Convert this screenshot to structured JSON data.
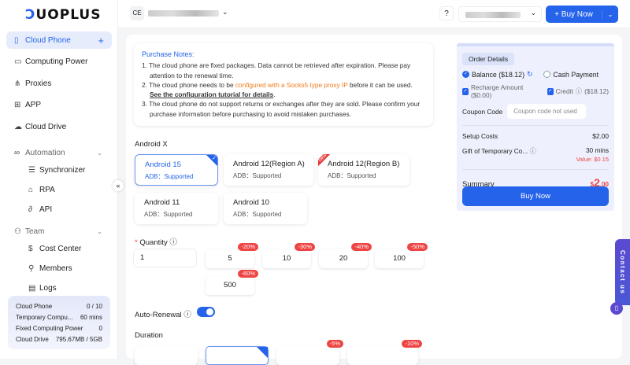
{
  "brand": {
    "logo_text": "DUOPLUS"
  },
  "sidebar": {
    "items": [
      {
        "label": "Cloud Phone",
        "icon": "phone-icon"
      },
      {
        "label": "Computing Power",
        "icon": "monitor-icon"
      },
      {
        "label": "Proxies",
        "icon": "network-icon"
      },
      {
        "label": "APP",
        "icon": "grid-icon"
      },
      {
        "label": "Cloud Drive",
        "icon": "cloud-icon"
      }
    ],
    "automation": {
      "label": "Automation",
      "items": [
        "Synchronizer",
        "RPA",
        "API"
      ]
    },
    "team": {
      "label": "Team",
      "items": [
        "Cost Center",
        "Members",
        "Logs"
      ]
    },
    "stats": [
      {
        "label": "Cloud Phone",
        "value": "0 / 10"
      },
      {
        "label": "Temporary Compu...",
        "value": "60 mins"
      },
      {
        "label": "Fixed Computing Power",
        "value": "0"
      },
      {
        "label": "Cloud Drive",
        "value": "795.67MB / 5GB"
      }
    ]
  },
  "header": {
    "team_initials": "CE",
    "buy_now": "+ Buy Now",
    "help": "?"
  },
  "notes": {
    "title": "Purchase Notes:",
    "n1": "1. The cloud phone are fixed packages. Data cannot be retrieved after expiration. Please pay attention to the renewal time.",
    "n2a": "2. The cloud phone needs to be ",
    "n2b": "configured with a Socks5 type proxy IP",
    "n2c": " before it can be used. ",
    "n2d": "See the configuration tutorial for details",
    "n2e": ".",
    "n3": "3. The cloud phone do not support returns or exchanges after they are sold. Please confirm your purchase information before purchasing to avoid mistaken purchases."
  },
  "android": {
    "label": "Android X",
    "options": [
      {
        "title": "Android 15",
        "adb": "ADB：Supported",
        "selected": true
      },
      {
        "title": "Android 12(Region A)",
        "adb": "ADB：Supported"
      },
      {
        "title": "Android 12(Region B)",
        "adb": "ADB：Supported",
        "tag": "New"
      },
      {
        "title": "Android 11",
        "adb": "ADB：Supported"
      },
      {
        "title": "Android 10",
        "adb": "ADB：Supported"
      }
    ]
  },
  "quantity": {
    "label": "Quantity",
    "required": "*",
    "value": "1",
    "presets": [
      {
        "value": "5",
        "discount": "-20%"
      },
      {
        "value": "10",
        "discount": "-30%"
      },
      {
        "value": "20",
        "discount": "-40%"
      },
      {
        "value": "100",
        "discount": "-50%"
      },
      {
        "value": "500",
        "discount": "-60%"
      }
    ]
  },
  "auto_renewal": {
    "label": "Auto-Renewal",
    "enabled": true
  },
  "duration": {
    "label": "Duration",
    "discounts": [
      "-5%",
      "-10%"
    ]
  },
  "order": {
    "title": "Order Details",
    "balance": "Balance ($18.12)",
    "cash": "Cash Payment",
    "recharge": "Recharge Amount ($0.00)",
    "credit": "Credit",
    "credit_amount": "($18.12)",
    "coupon_label": "Coupon Code",
    "coupon_placeholder": "Coupon code not used",
    "setup_label": "Setup Costs",
    "setup_value": "$2.00",
    "gift_label": "Gift of Temporary Co...",
    "gift_value": "30 mins",
    "gift_worth": "Value: $0.15",
    "summary_label": "Summary",
    "currency": "$",
    "total_int": "2",
    "total_dec": ".00",
    "buy": "Buy Now"
  },
  "contact": {
    "label": "Contact us"
  },
  "colors": {
    "accent": "#2563eb",
    "discount": "#ef4444",
    "warning": "#f07a1a"
  }
}
